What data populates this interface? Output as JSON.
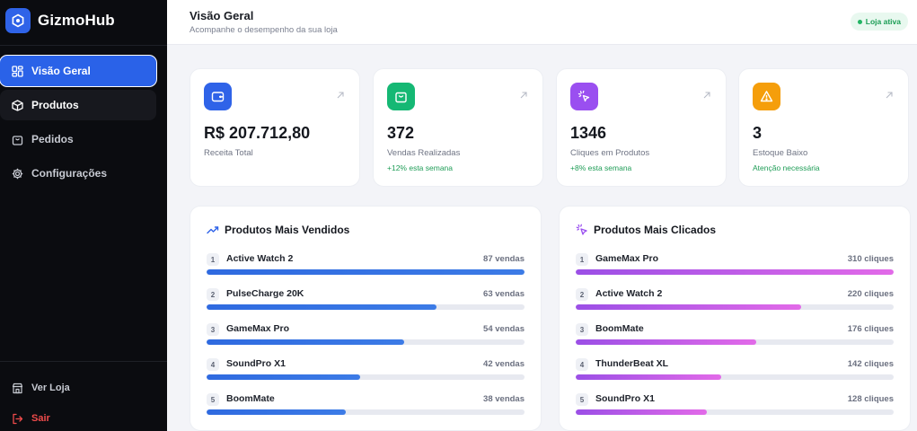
{
  "app": {
    "name": "GizmoHub"
  },
  "sidebar": {
    "items": [
      {
        "label": "Visão Geral",
        "icon": "dashboard-icon",
        "state": "active"
      },
      {
        "label": "Produtos",
        "icon": "box-icon",
        "state": "hover"
      },
      {
        "label": "Pedidos",
        "icon": "bag-icon",
        "state": ""
      },
      {
        "label": "Configurações",
        "icon": "gear-icon",
        "state": ""
      }
    ],
    "footer": {
      "store_label": "Ver Loja",
      "logout_label": "Sair"
    }
  },
  "header": {
    "title": "Visão Geral",
    "subtitle": "Acompanhe o desempenho da sua loja",
    "status": "Loja ativa"
  },
  "stats": [
    {
      "value": "R$ 207.712,80",
      "label": "Receita Total",
      "trend": "",
      "icon": "wallet-icon",
      "color": "#2f63e8"
    },
    {
      "value": "372",
      "label": "Vendas Realizadas",
      "trend": "+12% esta semana",
      "icon": "shopping-bag-icon",
      "color": "#15b874"
    },
    {
      "value": "1346",
      "label": "Cliques em Produtos",
      "trend": "+8% esta semana",
      "icon": "click-icon",
      "color": "#9a4ff0"
    },
    {
      "value": "3",
      "label": "Estoque Baixo",
      "trend": "Atenção necessária",
      "icon": "warning-icon",
      "color": "#f59e0b"
    }
  ],
  "top_sold": {
    "title": "Produtos Mais Vendidos",
    "items": [
      {
        "rank": "1",
        "name": "Active Watch 2",
        "count": "87 vendas",
        "fraction": 1.0
      },
      {
        "rank": "2",
        "name": "PulseCharge 20K",
        "count": "63 vendas",
        "fraction": 0.724
      },
      {
        "rank": "3",
        "name": "GameMax Pro",
        "count": "54 vendas",
        "fraction": 0.621
      },
      {
        "rank": "4",
        "name": "SoundPro X1",
        "count": "42 vendas",
        "fraction": 0.483
      },
      {
        "rank": "5",
        "name": "BoomMate",
        "count": "38 vendas",
        "fraction": 0.437
      }
    ]
  },
  "top_clicked": {
    "title": "Produtos Mais Clicados",
    "items": [
      {
        "rank": "1",
        "name": "GameMax Pro",
        "count": "310 cliques",
        "fraction": 1.0
      },
      {
        "rank": "2",
        "name": "Active Watch 2",
        "count": "220 cliques",
        "fraction": 0.71
      },
      {
        "rank": "3",
        "name": "BoomMate",
        "count": "176 cliques",
        "fraction": 0.568
      },
      {
        "rank": "4",
        "name": "ThunderBeat XL",
        "count": "142 cliques",
        "fraction": 0.458
      },
      {
        "rank": "5",
        "name": "SoundPro X1",
        "count": "128 cliques",
        "fraction": 0.413
      }
    ]
  }
}
